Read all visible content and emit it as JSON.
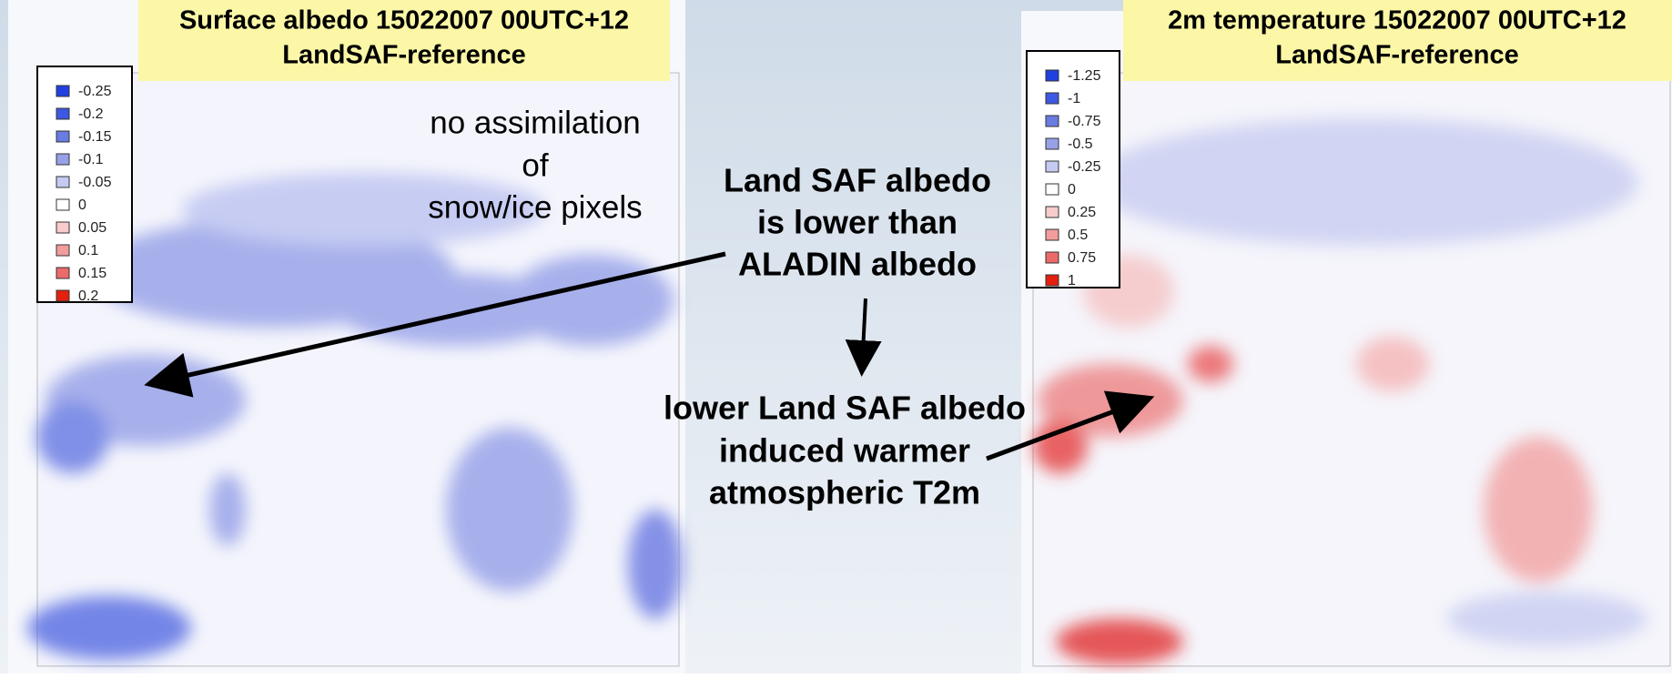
{
  "left_panel": {
    "title": [
      "Surface albedo 15022007 00UTC+12",
      "LandSAF-reference"
    ],
    "legend": [
      {
        "label": "-0.25",
        "color": "#2040e0"
      },
      {
        "label": "-0.2",
        "color": "#3d58e2"
      },
      {
        "label": "-0.15",
        "color": "#6a7be2"
      },
      {
        "label": "-0.1",
        "color": "#97a1e8"
      },
      {
        "label": "-0.05",
        "color": "#c5caf2"
      },
      {
        "label": "0",
        "color": "#ffffff"
      },
      {
        "label": "0.05",
        "color": "#f8cccc"
      },
      {
        "label": "0.1",
        "color": "#f29c9c"
      },
      {
        "label": "0.15",
        "color": "#ec6a6a"
      },
      {
        "label": "0.2",
        "color": "#e4200e"
      }
    ],
    "note": [
      "no assimilation",
      "of",
      "snow/ice pixels"
    ]
  },
  "right_panel": {
    "title": [
      "2m temperature 15022007 00UTC+12",
      "LandSAF-reference"
    ],
    "legend": [
      {
        "label": "-1.25",
        "color": "#2040e0"
      },
      {
        "label": "-1",
        "color": "#3d58e2"
      },
      {
        "label": "-0.75",
        "color": "#6a7be2"
      },
      {
        "label": "-0.5",
        "color": "#97a1e8"
      },
      {
        "label": "-0.25",
        "color": "#c5caf2"
      },
      {
        "label": "0",
        "color": "#ffffff"
      },
      {
        "label": "0.25",
        "color": "#f8cccc"
      },
      {
        "label": "0.5",
        "color": "#f29c9c"
      },
      {
        "label": "0.75",
        "color": "#ec6a6a"
      },
      {
        "label": "1",
        "color": "#e4200e"
      }
    ]
  },
  "annotations": {
    "albedo_lower": [
      "Land SAF albedo",
      "is lower than",
      "ALADIN albedo"
    ],
    "warmer": [
      "lower Land SAF albedo",
      "induced warmer",
      "atmospheric T2m"
    ]
  }
}
